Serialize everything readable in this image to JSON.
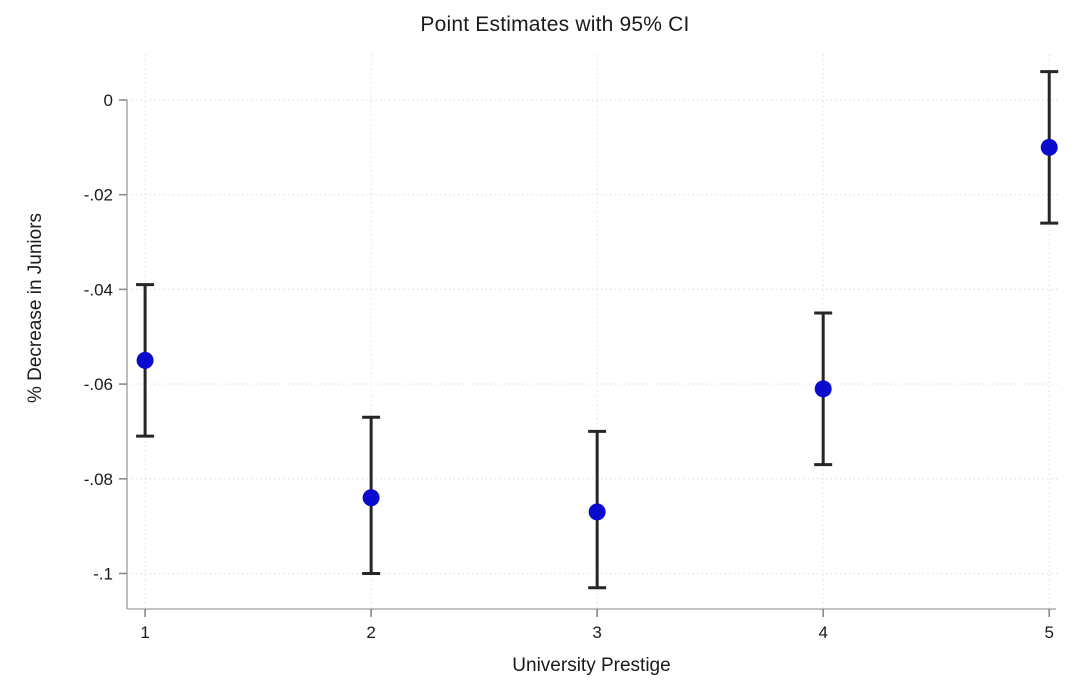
{
  "page": {
    "background": "#ffffff"
  },
  "chart_data": {
    "type": "scatter",
    "title": "Point Estimates with 95% CI",
    "xlabel": "University Prestige",
    "ylabel": "% Decrease in Juniors",
    "x": [
      1,
      2,
      3,
      4,
      5
    ],
    "xtick_labels": [
      "1",
      "2",
      "3",
      "4",
      "5"
    ],
    "yticks": [
      0,
      -0.02,
      -0.04,
      -0.06,
      -0.08,
      -0.1
    ],
    "ytick_labels": [
      "0",
      "-.02",
      "-.04",
      "-.06",
      "-.08",
      "-.1"
    ],
    "xlim": [
      0.92,
      5.03
    ],
    "ylim": [
      -0.1075,
      0.0095
    ],
    "grid": "dotted gridlines on both axes",
    "legend": "none",
    "series": [
      {
        "name": "point estimate with 95% confidence interval",
        "estimates": [
          -0.055,
          -0.084,
          -0.087,
          -0.061,
          -0.01
        ],
        "ci_low": [
          -0.071,
          -0.1,
          -0.103,
          -0.077,
          -0.026
        ],
        "ci_high": [
          -0.039,
          -0.067,
          -0.07,
          -0.045,
          0.006
        ]
      }
    ],
    "colors": {
      "marker": "#0b0bcd",
      "errorbar": "#262626",
      "gridline": "#d8dade",
      "axis_line": "#aeaeae",
      "tick_mark": "#8a8a8a",
      "text": "#1a1a1a"
    }
  }
}
